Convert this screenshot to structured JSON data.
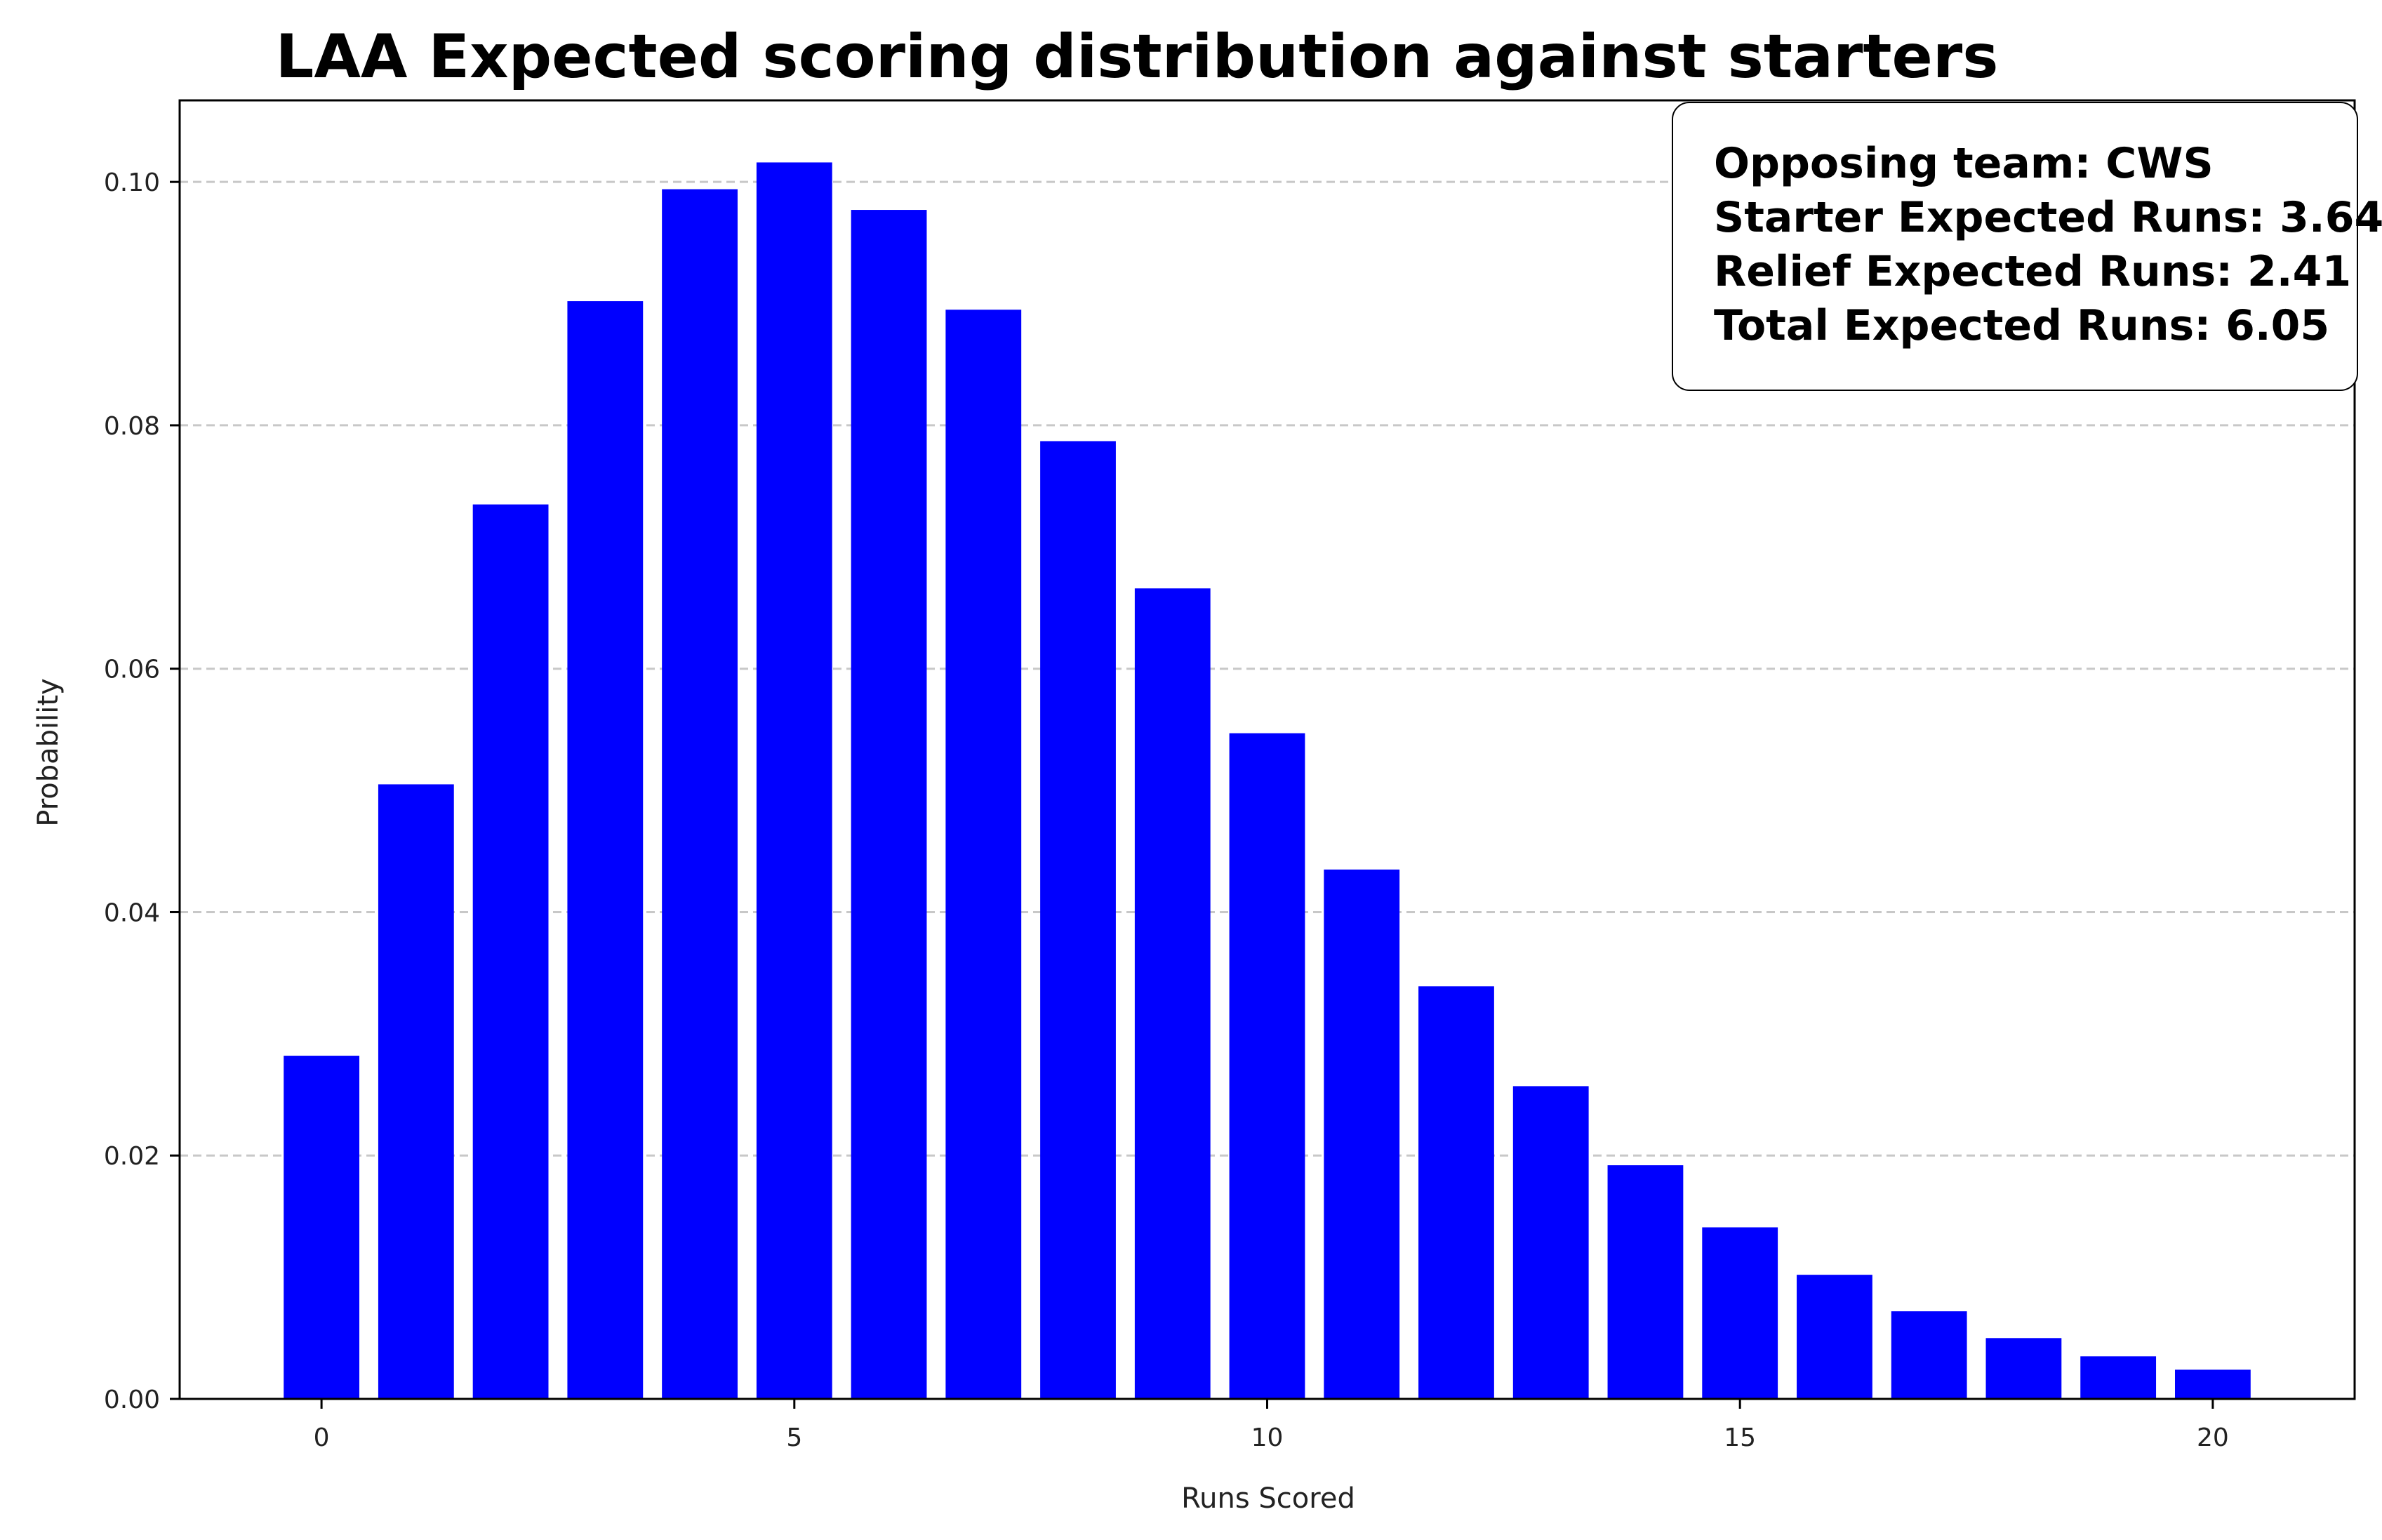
{
  "chart_data": {
    "type": "bar",
    "title": "LAA Expected scoring distribution against starters",
    "xlabel": "Runs Scored",
    "ylabel": "Probability",
    "categories": [
      0,
      1,
      2,
      3,
      4,
      5,
      6,
      7,
      8,
      9,
      10,
      11,
      12,
      13,
      14,
      15,
      16,
      17,
      18,
      19,
      20
    ],
    "values": [
      0.0282,
      0.0505,
      0.0735,
      0.0902,
      0.0994,
      0.1016,
      0.0977,
      0.0895,
      0.0787,
      0.0666,
      0.0547,
      0.0435,
      0.0339,
      0.0257,
      0.0192,
      0.0141,
      0.0102,
      0.0072,
      0.005,
      0.0035,
      0.0024
    ],
    "xlim": [
      -1.5,
      21.5
    ],
    "ylim": [
      0,
      0.1067
    ],
    "xticks": [
      0,
      5,
      10,
      15,
      20
    ],
    "xtick_labels": [
      "0",
      "5",
      "10",
      "15",
      "20"
    ],
    "yticks": [
      0,
      0.02,
      0.04,
      0.06,
      0.08,
      0.1
    ],
    "ytick_labels": [
      "0.00",
      "0.02",
      "0.04",
      "0.06",
      "0.08",
      "0.10"
    ],
    "bar_color": "#0000ff",
    "grid": {
      "axis": "y",
      "style": "dashed",
      "color": "#c8c8c8"
    },
    "annotation": {
      "placement": "top-right",
      "lines": [
        "Opposing team: CWS",
        "Starter Expected Runs: 3.64",
        "Relief Expected Runs: 2.41",
        "Total Expected Runs: 6.05"
      ]
    }
  }
}
